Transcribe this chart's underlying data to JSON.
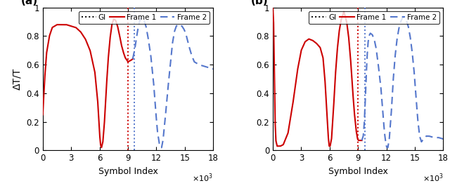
{
  "title_a": "(a)",
  "title_b": "(b)",
  "xlabel": "Symbol Index",
  "ylabel": "ΔT/T",
  "xlim": [
    0,
    18000
  ],
  "ylim": [
    0,
    1
  ],
  "xticks": [
    0,
    3000,
    6000,
    9000,
    12000,
    15000,
    18000
  ],
  "xtick_labels": [
    "0",
    "3",
    "6",
    "9",
    "12",
    "15",
    "18"
  ],
  "yticks": [
    0,
    0.2,
    0.4,
    0.6,
    0.8,
    1
  ],
  "gi_color": "#000000",
  "frame1_color": "#cc0000",
  "frame2_color": "#5577cc",
  "legend_items": [
    "GI",
    "Frame 1",
    "Frame 2"
  ],
  "vline_red_a": 9000,
  "vline_blue_a": 9700,
  "vline_red_b": 9000,
  "vline_blue_b": 9700,
  "figsize": [
    6.4,
    2.68
  ],
  "dpi": 100,
  "curve_a_frame1": [
    [
      0,
      0.25
    ],
    [
      200,
      0.5
    ],
    [
      400,
      0.68
    ],
    [
      700,
      0.8
    ],
    [
      1000,
      0.86
    ],
    [
      1500,
      0.88
    ],
    [
      2000,
      0.88
    ],
    [
      2500,
      0.88
    ],
    [
      3000,
      0.87
    ],
    [
      3500,
      0.86
    ],
    [
      4000,
      0.83
    ],
    [
      4500,
      0.78
    ],
    [
      5000,
      0.7
    ],
    [
      5500,
      0.55
    ],
    [
      5800,
      0.35
    ],
    [
      6000,
      0.12
    ],
    [
      6100,
      0.04
    ],
    [
      6200,
      0.02
    ],
    [
      6350,
      0.06
    ],
    [
      6500,
      0.18
    ],
    [
      6700,
      0.42
    ],
    [
      6900,
      0.63
    ],
    [
      7100,
      0.78
    ],
    [
      7300,
      0.88
    ],
    [
      7500,
      0.92
    ],
    [
      7700,
      0.91
    ],
    [
      7900,
      0.87
    ],
    [
      8100,
      0.81
    ],
    [
      8300,
      0.74
    ],
    [
      8500,
      0.69
    ],
    [
      8700,
      0.65
    ],
    [
      8900,
      0.63
    ],
    [
      9000,
      0.62
    ],
    [
      9300,
      0.63
    ],
    [
      9500,
      0.64
    ]
  ],
  "curve_a_frame2": [
    [
      9500,
      0.64
    ],
    [
      9700,
      0.7
    ],
    [
      9900,
      0.79
    ],
    [
      10100,
      0.87
    ],
    [
      10300,
      0.92
    ],
    [
      10500,
      0.93
    ],
    [
      10700,
      0.91
    ],
    [
      10900,
      0.87
    ],
    [
      11100,
      0.8
    ],
    [
      11400,
      0.67
    ],
    [
      11700,
      0.48
    ],
    [
      11900,
      0.3
    ],
    [
      12100,
      0.14
    ],
    [
      12300,
      0.05
    ],
    [
      12450,
      0.02
    ],
    [
      12550,
      0.02
    ],
    [
      12700,
      0.07
    ],
    [
      12900,
      0.2
    ],
    [
      13200,
      0.42
    ],
    [
      13500,
      0.62
    ],
    [
      13700,
      0.75
    ],
    [
      13900,
      0.83
    ],
    [
      14100,
      0.87
    ],
    [
      14300,
      0.88
    ],
    [
      14500,
      0.88
    ],
    [
      14700,
      0.87
    ],
    [
      14900,
      0.85
    ],
    [
      15100,
      0.82
    ],
    [
      15400,
      0.74
    ],
    [
      15700,
      0.67
    ],
    [
      16000,
      0.62
    ],
    [
      16500,
      0.6
    ],
    [
      17000,
      0.59
    ],
    [
      17500,
      0.58
    ],
    [
      18000,
      0.57
    ]
  ],
  "curve_b_frame1": [
    [
      0,
      1.0
    ],
    [
      80,
      0.9
    ],
    [
      160,
      0.55
    ],
    [
      240,
      0.2
    ],
    [
      320,
      0.07
    ],
    [
      450,
      0.03
    ],
    [
      600,
      0.03
    ],
    [
      800,
      0.03
    ],
    [
      1100,
      0.04
    ],
    [
      1600,
      0.12
    ],
    [
      2100,
      0.32
    ],
    [
      2600,
      0.56
    ],
    [
      3000,
      0.7
    ],
    [
      3400,
      0.76
    ],
    [
      3800,
      0.78
    ],
    [
      4200,
      0.77
    ],
    [
      4600,
      0.75
    ],
    [
      5000,
      0.72
    ],
    [
      5300,
      0.65
    ],
    [
      5500,
      0.5
    ],
    [
      5700,
      0.28
    ],
    [
      5850,
      0.1
    ],
    [
      5950,
      0.03
    ],
    [
      6050,
      0.03
    ],
    [
      6200,
      0.08
    ],
    [
      6400,
      0.28
    ],
    [
      6600,
      0.52
    ],
    [
      6800,
      0.7
    ],
    [
      7000,
      0.83
    ],
    [
      7200,
      0.91
    ],
    [
      7400,
      0.95
    ],
    [
      7500,
      0.97
    ],
    [
      7600,
      0.95
    ],
    [
      7800,
      0.9
    ],
    [
      8000,
      0.8
    ],
    [
      8200,
      0.65
    ],
    [
      8400,
      0.45
    ],
    [
      8600,
      0.27
    ],
    [
      8800,
      0.14
    ],
    [
      8950,
      0.08
    ],
    [
      9050,
      0.07
    ],
    [
      9200,
      0.07
    ],
    [
      9400,
      0.07
    ]
  ],
  "curve_b_frame2": [
    [
      9400,
      0.07
    ],
    [
      9550,
      0.1
    ],
    [
      9650,
      0.18
    ],
    [
      9750,
      0.32
    ],
    [
      9850,
      0.5
    ],
    [
      9950,
      0.65
    ],
    [
      10050,
      0.75
    ],
    [
      10150,
      0.8
    ],
    [
      10300,
      0.82
    ],
    [
      10500,
      0.81
    ],
    [
      10700,
      0.78
    ],
    [
      10900,
      0.72
    ],
    [
      11100,
      0.62
    ],
    [
      11400,
      0.45
    ],
    [
      11600,
      0.28
    ],
    [
      11800,
      0.12
    ],
    [
      11950,
      0.04
    ],
    [
      12050,
      0.02
    ],
    [
      12150,
      0.02
    ],
    [
      12300,
      0.08
    ],
    [
      12500,
      0.25
    ],
    [
      12700,
      0.48
    ],
    [
      12900,
      0.65
    ],
    [
      13100,
      0.77
    ],
    [
      13300,
      0.85
    ],
    [
      13500,
      0.9
    ],
    [
      13700,
      0.93
    ],
    [
      13900,
      0.93
    ],
    [
      14100,
      0.91
    ],
    [
      14300,
      0.87
    ],
    [
      14500,
      0.8
    ],
    [
      14700,
      0.7
    ],
    [
      14900,
      0.57
    ],
    [
      15100,
      0.4
    ],
    [
      15300,
      0.22
    ],
    [
      15500,
      0.1
    ],
    [
      15700,
      0.06
    ],
    [
      15900,
      0.08
    ],
    [
      16200,
      0.1
    ],
    [
      16500,
      0.1
    ],
    [
      17000,
      0.09
    ],
    [
      17500,
      0.09
    ],
    [
      18000,
      0.08
    ]
  ]
}
